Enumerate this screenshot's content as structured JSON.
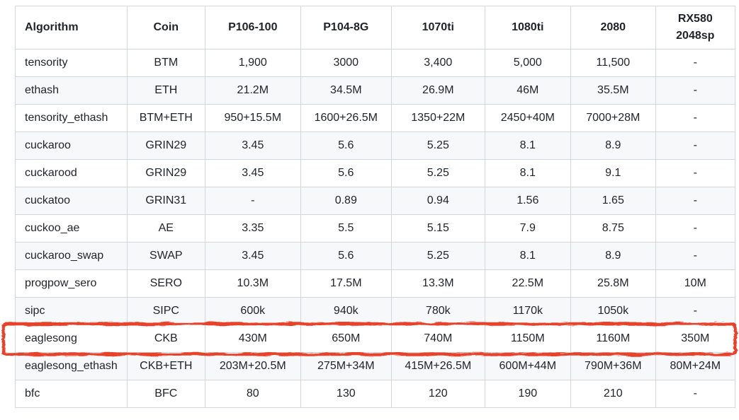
{
  "table": {
    "columns": [
      {
        "label": "Algorithm"
      },
      {
        "label": "Coin"
      },
      {
        "label": "P106-100"
      },
      {
        "label": "P104-8G"
      },
      {
        "label": "1070ti"
      },
      {
        "label": "1080ti"
      },
      {
        "label": "2080"
      },
      {
        "label": "RX580 2048sp"
      }
    ],
    "rows": [
      [
        "tensority",
        "BTM",
        "1,900",
        "3000",
        "3,400",
        "5,000",
        "11,500",
        "-"
      ],
      [
        "ethash",
        "ETH",
        "21.2M",
        "34.5M",
        "26.9M",
        "46M",
        "35.5M",
        "-"
      ],
      [
        "tensority_ethash",
        "BTM+ETH",
        "950+15.5M",
        "1600+26.5M",
        "1350+22M",
        "2450+40M",
        "7000+28M",
        "-"
      ],
      [
        "cuckaroo",
        "GRIN29",
        "3.45",
        "5.6",
        "5.25",
        "8.1",
        "8.9",
        "-"
      ],
      [
        "cuckarood",
        "GRIN29",
        "3.45",
        "5.6",
        "5.25",
        "8.1",
        "9.1",
        "-"
      ],
      [
        "cuckatoo",
        "GRIN31",
        "-",
        "0.89",
        "0.94",
        "1.56",
        "1.65",
        "-"
      ],
      [
        "cuckoo_ae",
        "AE",
        "3.35",
        "5.5",
        "5.15",
        "7.9",
        "8.75",
        "-"
      ],
      [
        "cuckaroo_swap",
        "SWAP",
        "3.45",
        "5.6",
        "5.25",
        "8.1",
        "8.9",
        "-"
      ],
      [
        "progpow_sero",
        "SERO",
        "10.3M",
        "17.5M",
        "13.3M",
        "22.5M",
        "25.8M",
        "10M"
      ],
      [
        "sipc",
        "SIPC",
        "600k",
        "940k",
        "780k",
        "1170k",
        "1050k",
        "-"
      ],
      [
        "eaglesong",
        "CKB",
        "430M",
        "650M",
        "740M",
        "1150M",
        "1160M",
        "350M"
      ],
      [
        "eaglesong_ethash",
        "CKB+ETH",
        "203M+20.5M",
        "275M+34M",
        "415M+26.5M",
        "600M+44M",
        "790M+36M",
        "80M+24M"
      ],
      [
        "bfc",
        "BFC",
        "80",
        "130",
        "120",
        "190",
        "210",
        "-"
      ]
    ],
    "highlighted_row_index": 10,
    "highlighted_row_label": "eaglesong"
  },
  "annotation": {
    "shape": "hand-drawn-rectangle",
    "color": "#e8432c"
  },
  "colors": {
    "background": "#ffffff",
    "row_stripe": "#f6f8fa",
    "border": "#d0d7de",
    "text": "#1f2328",
    "annotation": "#e8432c"
  }
}
